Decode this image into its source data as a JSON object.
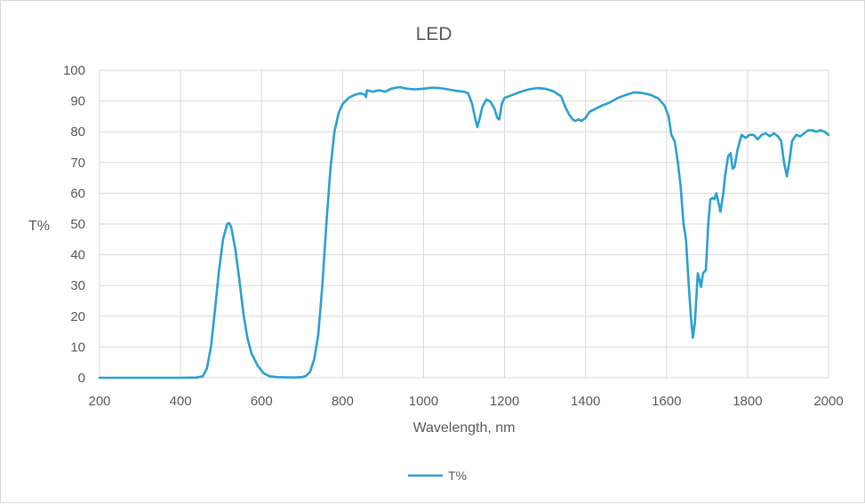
{
  "chart_data": {
    "type": "line",
    "title": "LED",
    "xlabel": "Wavelength, nm",
    "ylabel": "T%",
    "xlim": [
      200,
      2000
    ],
    "ylim": [
      0,
      100
    ],
    "x_ticks": [
      200,
      400,
      600,
      800,
      1000,
      1200,
      1400,
      1600,
      1800,
      2000
    ],
    "y_ticks": [
      0,
      10,
      20,
      30,
      40,
      50,
      60,
      70,
      80,
      90,
      100
    ],
    "grid": true,
    "legend_position": "bottom",
    "series": [
      {
        "name": "T%",
        "color": "#2b9fd3",
        "points": [
          [
            200,
            0
          ],
          [
            300,
            0
          ],
          [
            400,
            0
          ],
          [
            440,
            0.1
          ],
          [
            455,
            0.5
          ],
          [
            465,
            3
          ],
          [
            475,
            10
          ],
          [
            485,
            22
          ],
          [
            495,
            35
          ],
          [
            505,
            45
          ],
          [
            515,
            50
          ],
          [
            520,
            50.3
          ],
          [
            525,
            49
          ],
          [
            535,
            42
          ],
          [
            545,
            32
          ],
          [
            555,
            21
          ],
          [
            565,
            13
          ],
          [
            575,
            8
          ],
          [
            590,
            4
          ],
          [
            605,
            1.5
          ],
          [
            620,
            0.5
          ],
          [
            640,
            0.2
          ],
          [
            680,
            0.1
          ],
          [
            700,
            0.2
          ],
          [
            710,
            0.6
          ],
          [
            720,
            2
          ],
          [
            730,
            6
          ],
          [
            740,
            14
          ],
          [
            750,
            30
          ],
          [
            760,
            50
          ],
          [
            770,
            68
          ],
          [
            780,
            80
          ],
          [
            790,
            86
          ],
          [
            800,
            89
          ],
          [
            815,
            91
          ],
          [
            830,
            92
          ],
          [
            845,
            92.5
          ],
          [
            855,
            92
          ],
          [
            858,
            91.3
          ],
          [
            860,
            93.5
          ],
          [
            875,
            93
          ],
          [
            890,
            93.5
          ],
          [
            905,
            93
          ],
          [
            920,
            94
          ],
          [
            940,
            94.5
          ],
          [
            960,
            94
          ],
          [
            980,
            93.8
          ],
          [
            1000,
            94
          ],
          [
            1020,
            94.3
          ],
          [
            1040,
            94.2
          ],
          [
            1060,
            93.8
          ],
          [
            1080,
            93.3
          ],
          [
            1100,
            93
          ],
          [
            1110,
            92.5
          ],
          [
            1120,
            89
          ],
          [
            1128,
            84
          ],
          [
            1133,
            81.5
          ],
          [
            1138,
            84
          ],
          [
            1145,
            88
          ],
          [
            1155,
            90.5
          ],
          [
            1165,
            89.8
          ],
          [
            1175,
            87.5
          ],
          [
            1182,
            84.5
          ],
          [
            1187,
            84
          ],
          [
            1193,
            89
          ],
          [
            1200,
            91
          ],
          [
            1220,
            92
          ],
          [
            1240,
            93
          ],
          [
            1260,
            93.8
          ],
          [
            1280,
            94.2
          ],
          [
            1300,
            94
          ],
          [
            1320,
            93.2
          ],
          [
            1340,
            91.5
          ],
          [
            1350,
            88
          ],
          [
            1360,
            85.5
          ],
          [
            1368,
            84
          ],
          [
            1375,
            83.5
          ],
          [
            1382,
            84
          ],
          [
            1390,
            83.5
          ],
          [
            1400,
            84.5
          ],
          [
            1410,
            86.5
          ],
          [
            1425,
            87.5
          ],
          [
            1440,
            88.5
          ],
          [
            1460,
            89.5
          ],
          [
            1480,
            91
          ],
          [
            1500,
            92
          ],
          [
            1520,
            92.8
          ],
          [
            1540,
            92.6
          ],
          [
            1560,
            92
          ],
          [
            1580,
            90.8
          ],
          [
            1595,
            88.5
          ],
          [
            1605,
            85
          ],
          [
            1612,
            79
          ],
          [
            1620,
            77
          ],
          [
            1628,
            70
          ],
          [
            1635,
            62
          ],
          [
            1642,
            50
          ],
          [
            1648,
            45
          ],
          [
            1655,
            30
          ],
          [
            1660,
            20
          ],
          [
            1665,
            13
          ],
          [
            1670,
            18
          ],
          [
            1677,
            34
          ],
          [
            1681,
            32
          ],
          [
            1685,
            29.5
          ],
          [
            1690,
            34
          ],
          [
            1697,
            35
          ],
          [
            1703,
            50
          ],
          [
            1708,
            58
          ],
          [
            1714,
            58.5
          ],
          [
            1718,
            58
          ],
          [
            1723,
            60
          ],
          [
            1728,
            57
          ],
          [
            1733,
            54
          ],
          [
            1740,
            60
          ],
          [
            1745,
            66
          ],
          [
            1752,
            72
          ],
          [
            1758,
            73
          ],
          [
            1763,
            68
          ],
          [
            1768,
            68.5
          ],
          [
            1775,
            74
          ],
          [
            1785,
            79
          ],
          [
            1795,
            78
          ],
          [
            1805,
            79
          ],
          [
            1815,
            79
          ],
          [
            1825,
            77.5
          ],
          [
            1835,
            79
          ],
          [
            1845,
            79.5
          ],
          [
            1855,
            78.5
          ],
          [
            1865,
            79.5
          ],
          [
            1875,
            78.5
          ],
          [
            1883,
            77
          ],
          [
            1890,
            70
          ],
          [
            1897,
            65.5
          ],
          [
            1903,
            70
          ],
          [
            1910,
            77
          ],
          [
            1920,
            79
          ],
          [
            1930,
            78.5
          ],
          [
            1940,
            79.5
          ],
          [
            1950,
            80.5
          ],
          [
            1960,
            80.5
          ],
          [
            1970,
            80
          ],
          [
            1980,
            80.5
          ],
          [
            1990,
            80
          ],
          [
            2000,
            79
          ]
        ]
      }
    ]
  }
}
